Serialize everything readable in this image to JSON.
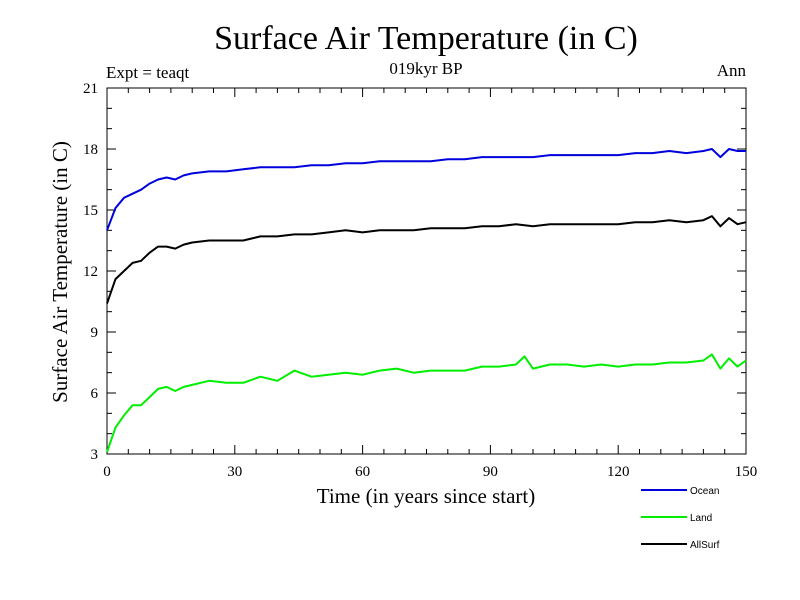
{
  "chart_data": {
    "type": "line",
    "title": "Surface Air Temperature (in C)",
    "subtitle_left": "Expt = teaqt",
    "subtitle_center": "019kyr BP",
    "subtitle_right": "Ann",
    "xlabel": "Time (in years since start)",
    "ylabel": "Surface Air Temperature (in C)",
    "xlim": [
      0,
      150
    ],
    "ylim": [
      3,
      21
    ],
    "xticks": [
      0,
      30,
      60,
      90,
      120,
      150
    ],
    "xtick_labels": [
      "0",
      "30",
      "60",
      "90",
      "120",
      "150"
    ],
    "yticks": [
      3,
      6,
      9,
      12,
      15,
      18,
      21
    ],
    "ytick_labels": [
      "3",
      "6",
      "9",
      "12",
      "15",
      "18",
      "21"
    ],
    "legend_position": "bottom-right",
    "series": [
      {
        "name": "Ocean",
        "color": "#0000dd",
        "x": [
          0,
          2,
          4,
          6,
          8,
          10,
          12,
          14,
          16,
          18,
          20,
          24,
          28,
          32,
          36,
          40,
          44,
          48,
          52,
          56,
          60,
          64,
          68,
          72,
          76,
          80,
          84,
          88,
          92,
          96,
          100,
          104,
          108,
          112,
          116,
          120,
          124,
          128,
          132,
          136,
          140,
          142,
          144,
          146,
          148,
          150
        ],
        "y": [
          14.0,
          15.1,
          15.6,
          15.8,
          16.0,
          16.3,
          16.5,
          16.6,
          16.5,
          16.7,
          16.8,
          16.9,
          16.9,
          17.0,
          17.1,
          17.1,
          17.1,
          17.2,
          17.2,
          17.3,
          17.3,
          17.4,
          17.4,
          17.4,
          17.4,
          17.5,
          17.5,
          17.6,
          17.6,
          17.6,
          17.6,
          17.7,
          17.7,
          17.7,
          17.7,
          17.7,
          17.8,
          17.8,
          17.9,
          17.8,
          17.9,
          18.0,
          17.6,
          18.0,
          17.9,
          17.9
        ]
      },
      {
        "name": "Land",
        "color": "#00ee00",
        "x": [
          0,
          2,
          4,
          6,
          8,
          10,
          12,
          14,
          16,
          18,
          20,
          24,
          28,
          32,
          36,
          40,
          44,
          48,
          52,
          56,
          60,
          64,
          68,
          72,
          76,
          80,
          84,
          88,
          92,
          96,
          98,
          100,
          104,
          108,
          112,
          116,
          120,
          124,
          128,
          132,
          136,
          140,
          142,
          144,
          146,
          148,
          150
        ],
        "y": [
          3.1,
          4.3,
          4.9,
          5.4,
          5.4,
          5.8,
          6.2,
          6.3,
          6.1,
          6.3,
          6.4,
          6.6,
          6.5,
          6.5,
          6.8,
          6.6,
          7.1,
          6.8,
          6.9,
          7.0,
          6.9,
          7.1,
          7.2,
          7.0,
          7.1,
          7.1,
          7.1,
          7.3,
          7.3,
          7.4,
          7.8,
          7.2,
          7.4,
          7.4,
          7.3,
          7.4,
          7.3,
          7.4,
          7.4,
          7.5,
          7.5,
          7.6,
          7.9,
          7.2,
          7.7,
          7.3,
          7.6
        ]
      },
      {
        "name": "AllSurf",
        "color": "#000000",
        "x": [
          0,
          2,
          4,
          6,
          8,
          10,
          12,
          14,
          16,
          18,
          20,
          24,
          28,
          32,
          36,
          40,
          44,
          48,
          52,
          56,
          60,
          64,
          68,
          72,
          76,
          80,
          84,
          88,
          92,
          96,
          100,
          104,
          108,
          112,
          116,
          120,
          124,
          128,
          132,
          136,
          140,
          142,
          144,
          146,
          148,
          150
        ],
        "y": [
          10.4,
          11.6,
          12.0,
          12.4,
          12.5,
          12.9,
          13.2,
          13.2,
          13.1,
          13.3,
          13.4,
          13.5,
          13.5,
          13.5,
          13.7,
          13.7,
          13.8,
          13.8,
          13.9,
          14.0,
          13.9,
          14.0,
          14.0,
          14.0,
          14.1,
          14.1,
          14.1,
          14.2,
          14.2,
          14.3,
          14.2,
          14.3,
          14.3,
          14.3,
          14.3,
          14.3,
          14.4,
          14.4,
          14.5,
          14.4,
          14.5,
          14.7,
          14.2,
          14.6,
          14.3,
          14.4
        ]
      }
    ]
  }
}
